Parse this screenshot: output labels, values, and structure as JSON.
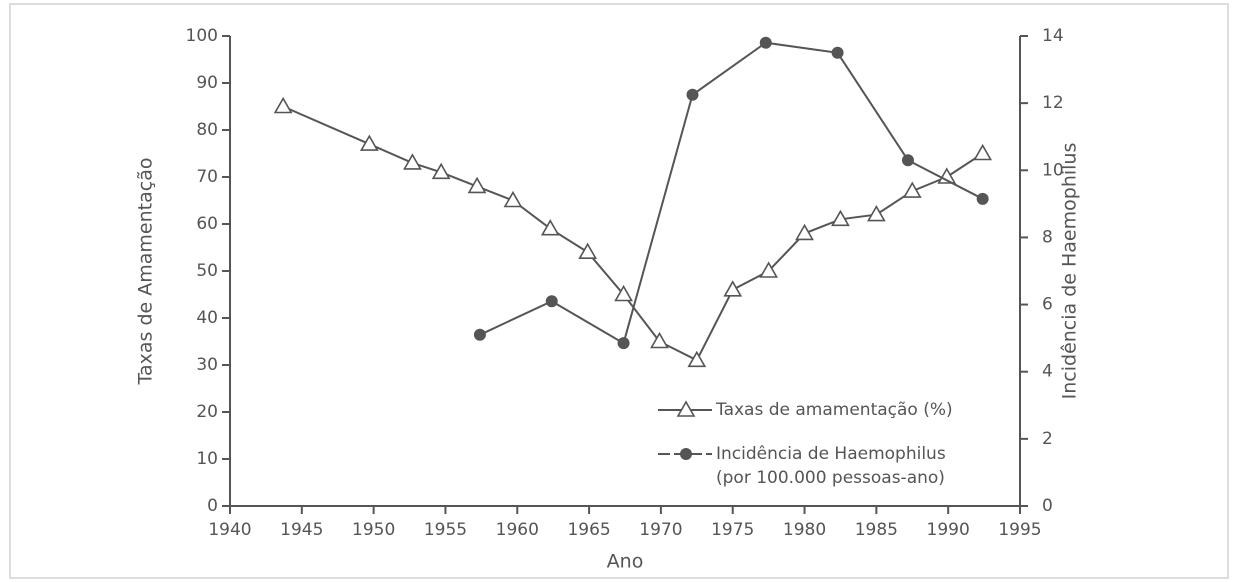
{
  "chart_data": {
    "type": "line",
    "x_label": "Ano",
    "y_label": "Taxas de Amamentação",
    "y2_label": "Incidência de Haemophilus",
    "xlim": [
      1940,
      1995
    ],
    "xticks": [
      1940,
      1945,
      1950,
      1955,
      1960,
      1965,
      1970,
      1975,
      1980,
      1985,
      1990,
      1995
    ],
    "ylim": [
      0,
      100
    ],
    "yticks": [
      0,
      10,
      20,
      30,
      40,
      50,
      60,
      70,
      80,
      90,
      100
    ],
    "y2lim": [
      0,
      14
    ],
    "y2ticks": [
      0,
      2,
      4,
      6,
      8,
      10,
      12,
      14
    ],
    "legend": "lower right",
    "series": [
      {
        "name": "Taxas de amamentação (%)",
        "color": "#555555",
        "marker": "triangle",
        "x": [
          1943.7,
          1949.7,
          1952.7,
          1954.7,
          1957.2,
          1959.7,
          1962.3,
          1964.9,
          1967.4,
          1969.9,
          1972.5,
          1975,
          1977.5,
          1980,
          1982.5,
          1985,
          1987.5,
          1989.9,
          1992.4
        ],
        "values": [
          85,
          77,
          73,
          71,
          68,
          65,
          59,
          54,
          45,
          35,
          31,
          46,
          50,
          58,
          61,
          62,
          67,
          70,
          75
        ]
      },
      {
        "name": "Incidência de Haemophilus",
        "note": "(por 100.000 pessoas-ano)",
        "color": "#555555",
        "marker": "circle",
        "axis": "y2",
        "x": [
          1957.4,
          1962.4,
          1967.4,
          1972.2,
          1977.3,
          1982.3,
          1987.2,
          1992.4
        ],
        "values": [
          5.1,
          6.1,
          4.85,
          12.25,
          13.8,
          13.5,
          10.3,
          9.15
        ]
      }
    ]
  }
}
